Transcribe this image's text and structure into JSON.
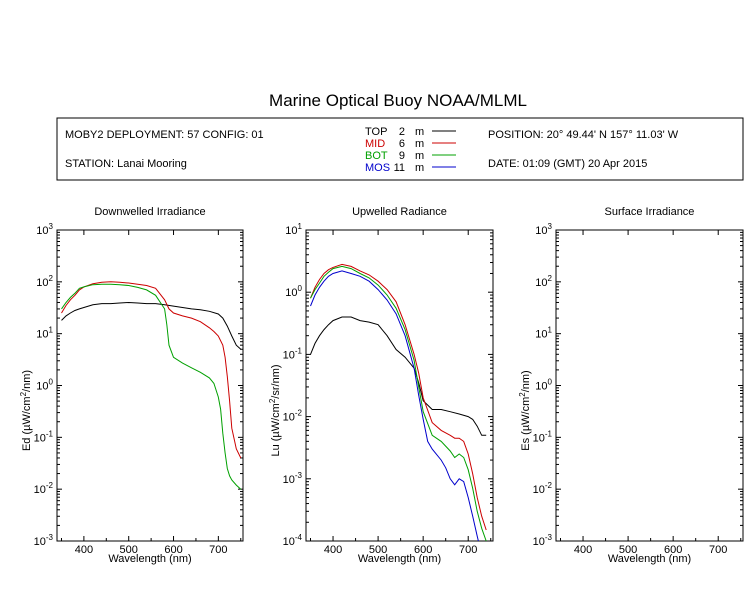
{
  "title": "Marine Optical Buoy NOAA/MLML",
  "info": {
    "deployment": "MOBY2 DEPLOYMENT: 57 CONFIG: 01",
    "station": "STATION: Lanai Mooring",
    "position": "POSITION: 20° 49.44' N   157° 11.03' W",
    "date": "DATE: 01:09 (GMT) 20 Apr 2015"
  },
  "legend": [
    {
      "name": "TOP",
      "depth": "2",
      "unit": "m",
      "color": "#000000"
    },
    {
      "name": "MID",
      "depth": "6",
      "unit": "m",
      "color": "#cc0000"
    },
    {
      "name": "BOT",
      "depth": "9",
      "unit": "m",
      "color": "#00a000"
    },
    {
      "name": "MOS",
      "depth": "11",
      "unit": "m",
      "color": "#0000cc"
    }
  ],
  "chart_data": [
    {
      "type": "line",
      "title": "Downwelled Irradiance",
      "xlabel": "Wavelength (nm)",
      "ylabel_main": "Ed  (µW/cm",
      "ylabel_sup": "2",
      "ylabel_end": "/nm)",
      "y_scale": "log",
      "xlim": [
        340,
        755
      ],
      "ylim_exp": [
        -3,
        3
      ],
      "xticks": [
        "400",
        "500",
        "600",
        "700"
      ],
      "xtick_values": [
        400,
        500,
        600,
        700
      ],
      "ytick_exps": [
        "-3",
        "-2",
        "-1",
        "0",
        "1",
        "2",
        "3"
      ],
      "series": [
        {
          "name": "TOP",
          "color": "#000000",
          "x": [
            350,
            360,
            370,
            380,
            390,
            400,
            420,
            440,
            460,
            480,
            500,
            520,
            540,
            560,
            580,
            600,
            620,
            640,
            660,
            680,
            700,
            710,
            720,
            730,
            740,
            750
          ],
          "y": [
            18,
            22,
            25,
            28,
            30,
            32,
            36,
            38,
            38,
            39,
            40,
            39,
            38,
            38,
            36,
            34,
            32,
            30,
            29,
            27,
            24,
            20,
            14,
            9,
            6,
            5
          ]
        },
        {
          "name": "MID",
          "color": "#cc0000",
          "x": [
            350,
            360,
            370,
            380,
            390,
            400,
            420,
            440,
            460,
            480,
            500,
            520,
            540,
            560,
            580,
            590,
            600,
            620,
            640,
            660,
            680,
            690,
            700,
            710,
            715,
            720,
            725,
            730,
            740,
            750
          ],
          "y": [
            25,
            35,
            45,
            55,
            70,
            80,
            92,
            98,
            100,
            98,
            95,
            90,
            85,
            75,
            45,
            30,
            25,
            22,
            20,
            17,
            13,
            11,
            9,
            6,
            3.5,
            1.5,
            0.5,
            0.15,
            0.06,
            0.04
          ]
        },
        {
          "name": "BOT",
          "color": "#00a000",
          "x": [
            350,
            360,
            370,
            380,
            390,
            400,
            420,
            440,
            460,
            480,
            500,
            520,
            540,
            560,
            580,
            585,
            590,
            600,
            620,
            640,
            660,
            680,
            690,
            700,
            705,
            710,
            715,
            720,
            725,
            730,
            740,
            750
          ],
          "y": [
            30,
            40,
            50,
            60,
            75,
            80,
            88,
            90,
            90,
            88,
            85,
            78,
            70,
            55,
            30,
            15,
            6,
            3.5,
            2.7,
            2.2,
            1.8,
            1.4,
            1.1,
            0.6,
            0.35,
            0.12,
            0.05,
            0.025,
            0.018,
            0.015,
            0.012,
            0.01
          ]
        }
      ]
    },
    {
      "type": "line",
      "title": "Upwelled Radiance",
      "xlabel": "Wavelength (nm)",
      "ylabel_main": "Lu  (µW/cm",
      "ylabel_sup": "2",
      "ylabel_end": "/sr/nm)",
      "y_scale": "log",
      "xlim": [
        340,
        755
      ],
      "ylim_exp": [
        -4,
        1
      ],
      "xticks": [
        "400",
        "500",
        "600",
        "700"
      ],
      "xtick_values": [
        400,
        500,
        600,
        700
      ],
      "ytick_exps": [
        "-4",
        "-3",
        "-2",
        "-1",
        "0",
        "1"
      ],
      "series": [
        {
          "name": "TOP",
          "color": "#000000",
          "x": [
            350,
            360,
            370,
            380,
            390,
            400,
            420,
            440,
            460,
            480,
            500,
            520,
            540,
            560,
            580,
            590,
            600,
            620,
            640,
            660,
            680,
            700,
            710,
            720,
            730,
            740
          ],
          "y": [
            0.1,
            0.15,
            0.2,
            0.25,
            0.3,
            0.35,
            0.4,
            0.4,
            0.35,
            0.33,
            0.3,
            0.2,
            0.12,
            0.09,
            0.06,
            0.035,
            0.018,
            0.013,
            0.013,
            0.012,
            0.011,
            0.01,
            0.009,
            0.007,
            0.005,
            0.005
          ]
        },
        {
          "name": "MID",
          "color": "#cc0000",
          "x": [
            350,
            360,
            370,
            380,
            390,
            400,
            420,
            440,
            460,
            480,
            500,
            520,
            540,
            560,
            580,
            590,
            600,
            620,
            640,
            660,
            670,
            680,
            690,
            700,
            710,
            720,
            730,
            740
          ],
          "y": [
            0.8,
            1.2,
            1.6,
            2,
            2.3,
            2.5,
            2.8,
            2.6,
            2.2,
            1.9,
            1.5,
            1.1,
            0.7,
            0.3,
            0.1,
            0.05,
            0.02,
            0.008,
            0.006,
            0.005,
            0.0045,
            0.0045,
            0.004,
            0.0025,
            0.0012,
            0.0005,
            0.00025,
            0.00015
          ]
        },
        {
          "name": "BOT",
          "color": "#00a000",
          "x": [
            350,
            360,
            370,
            380,
            390,
            400,
            420,
            440,
            460,
            480,
            500,
            520,
            540,
            560,
            580,
            590,
            600,
            620,
            640,
            660,
            670,
            680,
            690,
            700,
            710,
            720,
            730,
            740
          ],
          "y": [
            0.8,
            1.1,
            1.4,
            1.8,
            2.1,
            2.4,
            2.6,
            2.4,
            2,
            1.7,
            1.3,
            0.9,
            0.55,
            0.25,
            0.08,
            0.03,
            0.012,
            0.005,
            0.004,
            0.0028,
            0.0022,
            0.0025,
            0.0022,
            0.0014,
            0.0007,
            0.0003,
            0.00016,
            0.0001
          ]
        },
        {
          "name": "MOS",
          "color": "#0000cc",
          "x": [
            350,
            360,
            370,
            380,
            390,
            400,
            420,
            440,
            460,
            480,
            500,
            520,
            540,
            560,
            580,
            590,
            600,
            610,
            620,
            640,
            650,
            660,
            670,
            680,
            690,
            700,
            710,
            720,
            730
          ],
          "y": [
            0.6,
            0.9,
            1.2,
            1.5,
            1.8,
            2,
            2.2,
            2,
            1.8,
            1.5,
            1.1,
            0.75,
            0.45,
            0.2,
            0.06,
            0.022,
            0.009,
            0.004,
            0.003,
            0.002,
            0.0015,
            0.001,
            0.0008,
            0.001,
            0.0009,
            0.0005,
            0.00025,
            0.00012,
            6e-05
          ]
        }
      ]
    },
    {
      "type": "line",
      "title": "Surface Irradiance",
      "xlabel": "Wavelength (nm)",
      "ylabel_main": "Es  (µW/cm",
      "ylabel_sup": "2",
      "ylabel_end": "/nm)",
      "y_scale": "log",
      "xlim": [
        340,
        755
      ],
      "ylim_exp": [
        -3,
        3
      ],
      "xticks": [
        "400",
        "500",
        "600",
        "700"
      ],
      "xtick_values": [
        400,
        500,
        600,
        700
      ],
      "ytick_exps": [
        "-3",
        "-2",
        "-1",
        "0",
        "1",
        "2",
        "3"
      ],
      "series": []
    }
  ]
}
